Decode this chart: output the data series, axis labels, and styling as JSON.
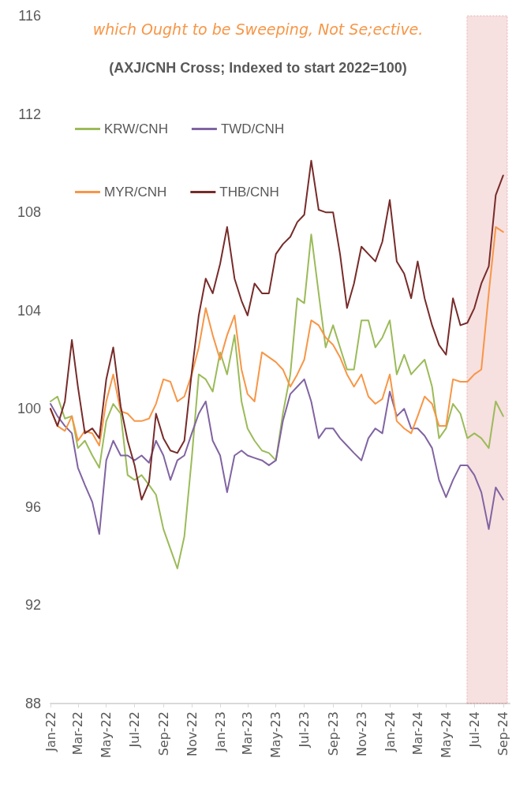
{
  "chart_data": {
    "type": "line",
    "title": "which Ought to be Sweeping, Not Se;ective.",
    "subtitle": "(AXJ/CNH Cross; Indexed to start 2022=100)",
    "x": [
      "2022-01-01",
      "2022-01-16",
      "2022-02-01",
      "2022-02-16",
      "2022-03-01",
      "2022-03-16",
      "2022-04-01",
      "2022-04-16",
      "2022-05-01",
      "2022-05-16",
      "2022-06-01",
      "2022-06-16",
      "2022-07-01",
      "2022-07-16",
      "2022-08-01",
      "2022-08-16",
      "2022-09-01",
      "2022-09-16",
      "2022-10-01",
      "2022-10-16",
      "2022-11-01",
      "2022-11-16",
      "2022-12-01",
      "2022-12-16",
      "2023-01-01",
      "2023-01-16",
      "2023-02-01",
      "2023-02-16",
      "2023-03-01",
      "2023-03-16",
      "2023-04-01",
      "2023-04-16",
      "2023-05-01",
      "2023-05-16",
      "2023-06-01",
      "2023-06-16",
      "2023-07-01",
      "2023-07-16",
      "2023-08-01",
      "2023-08-16",
      "2023-09-01",
      "2023-09-16",
      "2023-10-01",
      "2023-10-16",
      "2023-11-01",
      "2023-11-16",
      "2023-12-01",
      "2023-12-16",
      "2024-01-01",
      "2024-01-16",
      "2024-02-01",
      "2024-02-16",
      "2024-03-01",
      "2024-03-16",
      "2024-04-01",
      "2024-04-16",
      "2024-05-01",
      "2024-05-16",
      "2024-06-01",
      "2024-06-16",
      "2024-07-01",
      "2024-07-16",
      "2024-08-01",
      "2024-08-16",
      "2024-09-01"
    ],
    "series": [
      {
        "name": "KRW/CNH",
        "color": "#9bbb59",
        "values": [
          100.3,
          100.5,
          99.6,
          99.7,
          98.4,
          98.7,
          98.1,
          97.6,
          99.5,
          100.2,
          99.8,
          97.3,
          97.1,
          97.3,
          96.9,
          96.5,
          95.1,
          94.3,
          93.5,
          94.8,
          98,
          101.4,
          101.2,
          100.7,
          102.3,
          101.4,
          103,
          100.3,
          99.2,
          98.7,
          98.3,
          98.2,
          97.9,
          99.8,
          101.4,
          104.5,
          104.3,
          107.1,
          104.7,
          102.5,
          103.4,
          102.5,
          101.6,
          101.6,
          103.6,
          103.6,
          102.5,
          102.9,
          103.6,
          101.4,
          102.2,
          101.4,
          101.7,
          102,
          100.9,
          98.8,
          99.2,
          100.2,
          99.8,
          98.8,
          99,
          98.8,
          98.4,
          100.3,
          99.7
        ]
      },
      {
        "name": "TWD/CNH",
        "color": "#8064a2",
        "values": [
          100.2,
          99.7,
          99.3,
          99,
          97.6,
          96.9,
          96.2,
          94.9,
          97.9,
          98.7,
          98.1,
          98.1,
          97.9,
          98.1,
          97.8,
          98.7,
          98.1,
          97.1,
          97.9,
          98.1,
          99,
          99.8,
          100.3,
          98.7,
          98.1,
          96.6,
          98.1,
          98.3,
          98.1,
          98,
          97.9,
          97.7,
          97.9,
          99.5,
          100.6,
          100.9,
          101.2,
          100.3,
          98.8,
          99.2,
          99.2,
          98.8,
          98.5,
          98.2,
          97.9,
          98.8,
          99.2,
          99,
          100.7,
          99.7,
          100,
          99.2,
          99.2,
          98.9,
          98.4,
          97.1,
          96.4,
          97.1,
          97.7,
          97.7,
          97.3,
          96.6,
          95.1,
          96.8,
          96.3
        ]
      },
      {
        "name": "MYR/CNH",
        "color": "#f79646",
        "values": [
          100,
          99.3,
          99.1,
          99.7,
          98.7,
          99.1,
          99,
          98.5,
          100.3,
          101.4,
          99.9,
          99.8,
          99.5,
          99.5,
          99.6,
          100.2,
          101.2,
          101.1,
          100.3,
          100.5,
          101.4,
          102.5,
          104.1,
          103,
          102,
          103,
          103.8,
          101.6,
          100.6,
          100.3,
          102.3,
          102.1,
          101.9,
          101.6,
          100.9,
          101.4,
          102,
          103.6,
          103.4,
          102.9,
          102.6,
          102.1,
          101.4,
          100.9,
          101.4,
          100.5,
          100.2,
          100.4,
          101.4,
          99.5,
          99.2,
          99,
          99.7,
          100.5,
          100.2,
          99.3,
          99.3,
          101.2,
          101.1,
          101.1,
          101.4,
          101.6,
          104.7,
          107.4,
          107.2
        ]
      },
      {
        "name": "THB/CNH",
        "color": "#772c2a",
        "values": [
          100,
          99.3,
          100.3,
          102.8,
          100.9,
          99,
          99.2,
          98.8,
          101.2,
          102.5,
          100.1,
          98.7,
          97.7,
          96.3,
          97,
          99.8,
          98.8,
          98.3,
          98.2,
          98.7,
          101.5,
          103.8,
          105.3,
          104.7,
          105.9,
          107.4,
          105.3,
          104.4,
          103.8,
          105.1,
          104.7,
          104.7,
          106.3,
          106.7,
          107,
          107.6,
          107.9,
          110.1,
          108.1,
          108,
          108,
          106.3,
          104.1,
          105.1,
          106.6,
          106.3,
          106,
          106.8,
          108.5,
          106,
          105.5,
          104.5,
          106,
          104.5,
          103.4,
          102.6,
          102.2,
          104.5,
          103.4,
          103.5,
          104.1,
          105.1,
          105.8,
          108.7,
          109.5
        ]
      }
    ],
    "xlim": [
      "2022-01-01",
      "2024-09-15"
    ],
    "xticks": [
      {
        "value": "2022-01-01",
        "label": "Jan-22"
      },
      {
        "value": "2022-03-01",
        "label": "Mar-22"
      },
      {
        "value": "2022-05-01",
        "label": "May-22"
      },
      {
        "value": "2022-07-01",
        "label": "Jul-22"
      },
      {
        "value": "2022-09-01",
        "label": "Sep-22"
      },
      {
        "value": "2022-11-01",
        "label": "Nov-22"
      },
      {
        "value": "2023-01-01",
        "label": "Jan-23"
      },
      {
        "value": "2023-03-01",
        "label": "Mar-23"
      },
      {
        "value": "2023-05-01",
        "label": "May-23"
      },
      {
        "value": "2023-07-01",
        "label": "Jul-23"
      },
      {
        "value": "2023-09-01",
        "label": "Sep-23"
      },
      {
        "value": "2023-11-01",
        "label": "Nov-23"
      },
      {
        "value": "2024-01-01",
        "label": "Jan-24"
      },
      {
        "value": "2024-03-01",
        "label": "Mar-24"
      },
      {
        "value": "2024-05-01",
        "label": "May-24"
      },
      {
        "value": "2024-07-01",
        "label": "Jul-24"
      },
      {
        "value": "2024-09-01",
        "label": "Sep-24"
      }
    ],
    "ylim": [
      88,
      116
    ],
    "yticks": [
      88,
      92,
      96,
      100,
      104,
      108,
      112,
      116
    ],
    "bands": [
      {
        "axis": "x",
        "from": "2024-06-15",
        "to": "2024-09-10",
        "color": "#c00000"
      }
    ],
    "grid": false,
    "legend": "top left",
    "marker": "none",
    "line_style": "solid"
  }
}
